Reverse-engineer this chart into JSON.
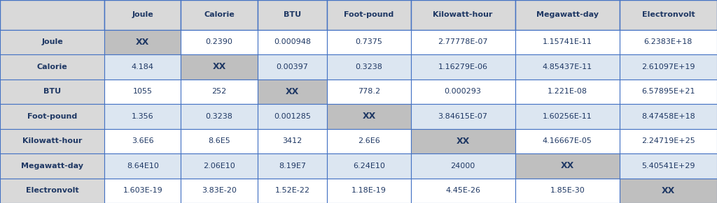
{
  "columns": [
    "",
    "Joule",
    "Calorie",
    "BTU",
    "Foot-pound",
    "Kilowatt-hour",
    "Megawatt-day",
    "Electronvolt"
  ],
  "rows": [
    [
      "Joule",
      "XX",
      "0.2390",
      "0.000948",
      "0.7375",
      "2.77778E-07",
      "1.15741E-11",
      "6.2383E+18"
    ],
    [
      "Calorie",
      "4.184",
      "XX",
      "0.00397",
      "0.3238",
      "1.16279E-06",
      "4.85437E-11",
      "2.61097E+19"
    ],
    [
      "BTU",
      "1055",
      "252",
      "XX",
      "778.2",
      "0.000293",
      "1.221E-08",
      "6.57895E+21"
    ],
    [
      "Foot-pound",
      "1.356",
      "0.3238",
      "0.001285",
      "XX",
      "3.84615E-07",
      "1.60256E-11",
      "8.47458E+18"
    ],
    [
      "Kilowatt-hour",
      "3.6E6",
      "8.6E5",
      "3412",
      "2.6E6",
      "XX",
      "4.16667E-05",
      "2.24719E+25"
    ],
    [
      "Megawatt-day",
      "8.64E10",
      "2.06E10",
      "8.19E7",
      "6.24E10",
      "24000",
      "XX",
      "5.40541E+29"
    ],
    [
      "Electronvolt",
      "1.603E-19",
      "3.83E-20",
      "1.52E-22",
      "1.18E-19",
      "4.45E-26",
      "1.85E-30",
      "XX"
    ]
  ],
  "col_widths_raw": [
    1.5,
    1.1,
    1.1,
    1.0,
    1.2,
    1.5,
    1.5,
    1.4
  ],
  "header_bg": "#d9d9d9",
  "row_label_bg": "#d9d9d9",
  "xx_bg": "#bfbfbf",
  "white_bg": "#ffffff",
  "blue_bg": "#dce6f1",
  "fig_bg": "#d9d9d9",
  "header_text_color": "#1f3864",
  "cell_text_color": "#1f3864",
  "border_color": "#4472c4",
  "figsize": [
    10.24,
    2.91
  ],
  "dpi": 100,
  "header_fontsize": 8.0,
  "cell_fontsize": 8.0,
  "xx_fontsize": 9.0
}
